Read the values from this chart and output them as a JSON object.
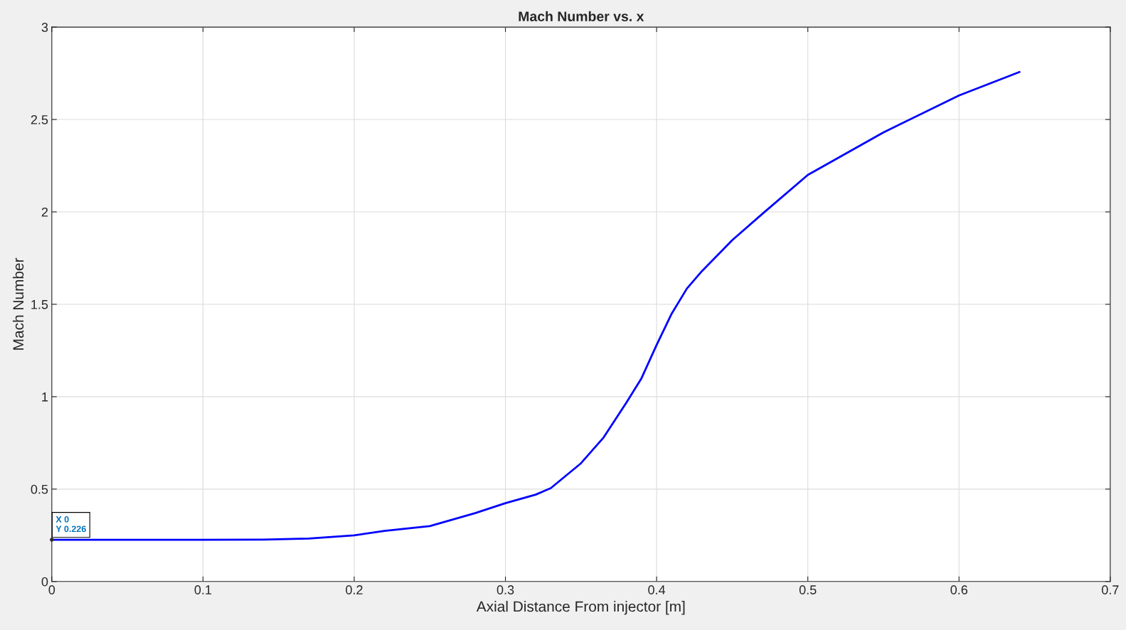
{
  "chart_data": {
    "type": "line",
    "title": "Mach Number vs. x",
    "xlabel": "Axial Distance From injector [m]",
    "ylabel": "Mach Number",
    "x": [
      0,
      0.05,
      0.1,
      0.14,
      0.17,
      0.2,
      0.22,
      0.25,
      0.28,
      0.3,
      0.32,
      0.33,
      0.35,
      0.365,
      0.38,
      0.39,
      0.4,
      0.41,
      0.42,
      0.43,
      0.45,
      0.47,
      0.5,
      0.55,
      0.6,
      0.64
    ],
    "series": [
      {
        "color": "#0000ff",
        "values": [
          0.226,
          0.226,
          0.226,
          0.227,
          0.232,
          0.25,
          0.274,
          0.3,
          0.37,
          0.424,
          0.47,
          0.505,
          0.64,
          0.78,
          0.968,
          1.1,
          1.28,
          1.45,
          1.585,
          1.68,
          1.847,
          1.99,
          2.2,
          2.43,
          2.63,
          2.757
        ]
      }
    ],
    "xlim": [
      0,
      0.7
    ],
    "ylim": [
      0,
      3
    ],
    "xticks": [
      0,
      0.1,
      0.2,
      0.3,
      0.4,
      0.5,
      0.6,
      0.7
    ],
    "yticks": [
      0,
      0.5,
      1,
      1.5,
      2,
      2.5,
      3
    ],
    "grid": true,
    "marker": "none",
    "line_style": "solid",
    "annotations": [
      {
        "text": "X 0\nY 0.226",
        "x": 0,
        "y": 0.226
      }
    ]
  }
}
